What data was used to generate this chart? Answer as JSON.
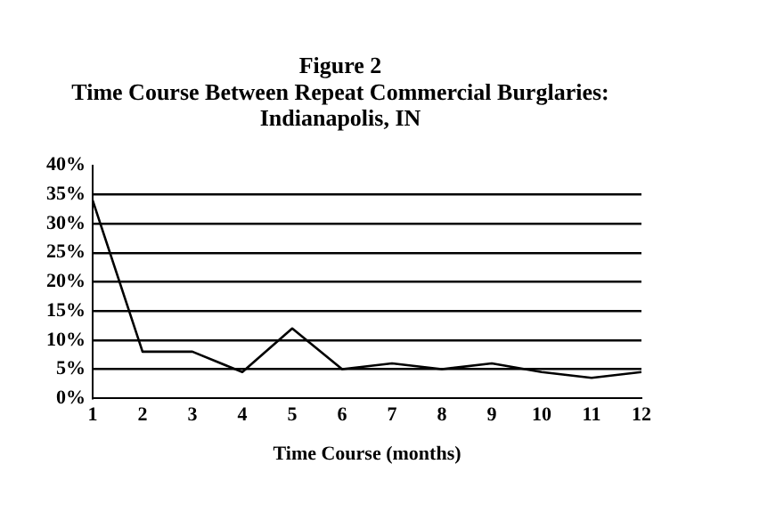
{
  "chart_data": {
    "type": "line",
    "title": "Figure 2\nTime Course Between Repeat Commercial Burglaries:\nIndianapolis, IN",
    "xlabel": "Time Course (months)",
    "x": [
      1,
      2,
      3,
      4,
      5,
      6,
      7,
      8,
      9,
      10,
      11,
      12
    ],
    "values": [
      34,
      8,
      8,
      4.5,
      12,
      5,
      6,
      5,
      6,
      4.5,
      3.5,
      4.5
    ],
    "color": "#000000",
    "xlim": [
      1,
      12
    ],
    "xticks": [
      1,
      2,
      3,
      4,
      5,
      6,
      7,
      8,
      9,
      10,
      11,
      12
    ],
    "ylim": [
      0,
      40
    ],
    "yticks": [
      {
        "value": 0,
        "label": "0%"
      },
      {
        "value": 5,
        "label": "5%"
      },
      {
        "value": 10,
        "label": "10%"
      },
      {
        "value": 15,
        "label": "15%"
      },
      {
        "value": 20,
        "label": "20%"
      },
      {
        "value": 25,
        "label": "25%"
      },
      {
        "value": 30,
        "label": "30%"
      },
      {
        "value": 35,
        "label": "35%"
      },
      {
        "value": 40,
        "label": "40%"
      }
    ],
    "grid": "y",
    "marker": "none",
    "line_style": "solid"
  }
}
